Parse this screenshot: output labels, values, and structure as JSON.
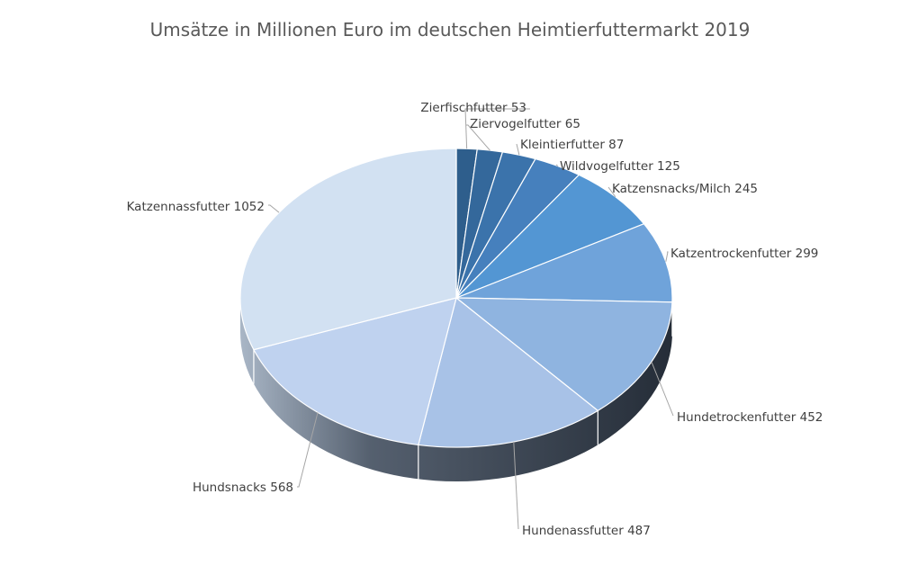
{
  "chart_data": {
    "type": "pie",
    "title": "Umsätze in Millionen Euro im deutschen Heimtierfuttermarkt 2019",
    "slices": [
      {
        "label": "Zierfischfutter",
        "value": 53,
        "color": "#2e5e8c"
      },
      {
        "label": "Ziervogelfutter",
        "value": 65,
        "color": "#34689b"
      },
      {
        "label": "Kleintierfutter",
        "value": 87,
        "color": "#3b73ab"
      },
      {
        "label": "Wildvogelfutter",
        "value": 125,
        "color": "#4680bd"
      },
      {
        "label": "Katzensnacks/Milch",
        "value": 245,
        "color": "#5396d3"
      },
      {
        "label": "Katzentrockenfutter",
        "value": 299,
        "color": "#6fa3da"
      },
      {
        "label": "Hundetrockenfutter",
        "value": 452,
        "color": "#8fb4e0"
      },
      {
        "label": "Hundenassfutter",
        "value": 487,
        "color": "#a8c2e7"
      },
      {
        "label": "Hundsnacks",
        "value": 568,
        "color": "#bfd2ef"
      },
      {
        "label": "Katzennassfutter",
        "value": 1052,
        "color": "#d2e1f2"
      }
    ],
    "legend": "none",
    "style": "3d-pie"
  }
}
